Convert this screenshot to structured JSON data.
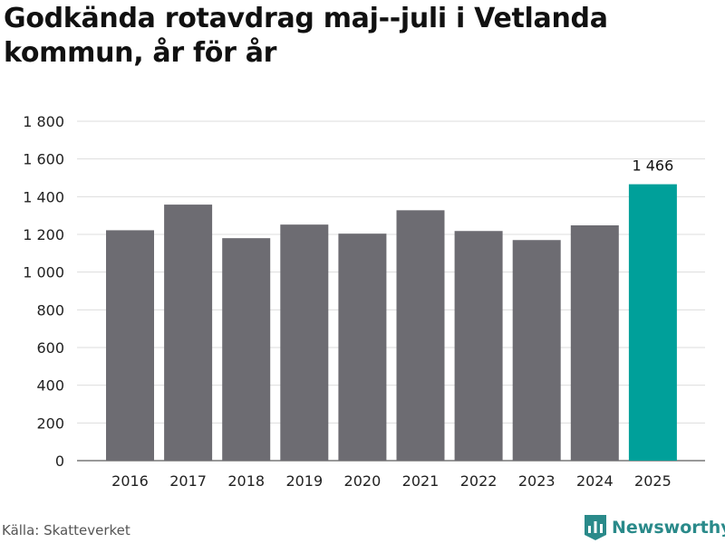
{
  "title": "Godkända rotavdrag maj--juli i Vetlanda kommun, år för år",
  "source": "Källa: Skatteverket",
  "brand": {
    "name": "Newsworthy",
    "icon": "newsworthy-logo-icon",
    "color": "#2a8a8a"
  },
  "colors": {
    "bar": "#6d6c72",
    "highlight": "#00a09a",
    "grid": "#dddddd"
  },
  "chart_data": {
    "type": "bar",
    "categories": [
      "2016",
      "2017",
      "2018",
      "2019",
      "2020",
      "2021",
      "2022",
      "2023",
      "2024",
      "2025"
    ],
    "values": [
      1222,
      1358,
      1180,
      1252,
      1204,
      1328,
      1218,
      1170,
      1248,
      1466
    ],
    "highlight_index": 9,
    "data_labels": [
      {
        "index": 9,
        "text": "1 466"
      }
    ],
    "title": "Godkända rotavdrag maj--juli i Vetlanda kommun, år för år",
    "xlabel": "",
    "ylabel": "",
    "ylim": [
      0,
      1800
    ],
    "yticks": [
      0,
      200,
      400,
      600,
      800,
      1000,
      1200,
      1400,
      1600,
      1800
    ],
    "ytick_labels": [
      "0",
      "200",
      "400",
      "600",
      "800",
      "1 000",
      "1 200",
      "1 400",
      "1 600",
      "1 800"
    ],
    "grid": true,
    "legend": "none"
  }
}
